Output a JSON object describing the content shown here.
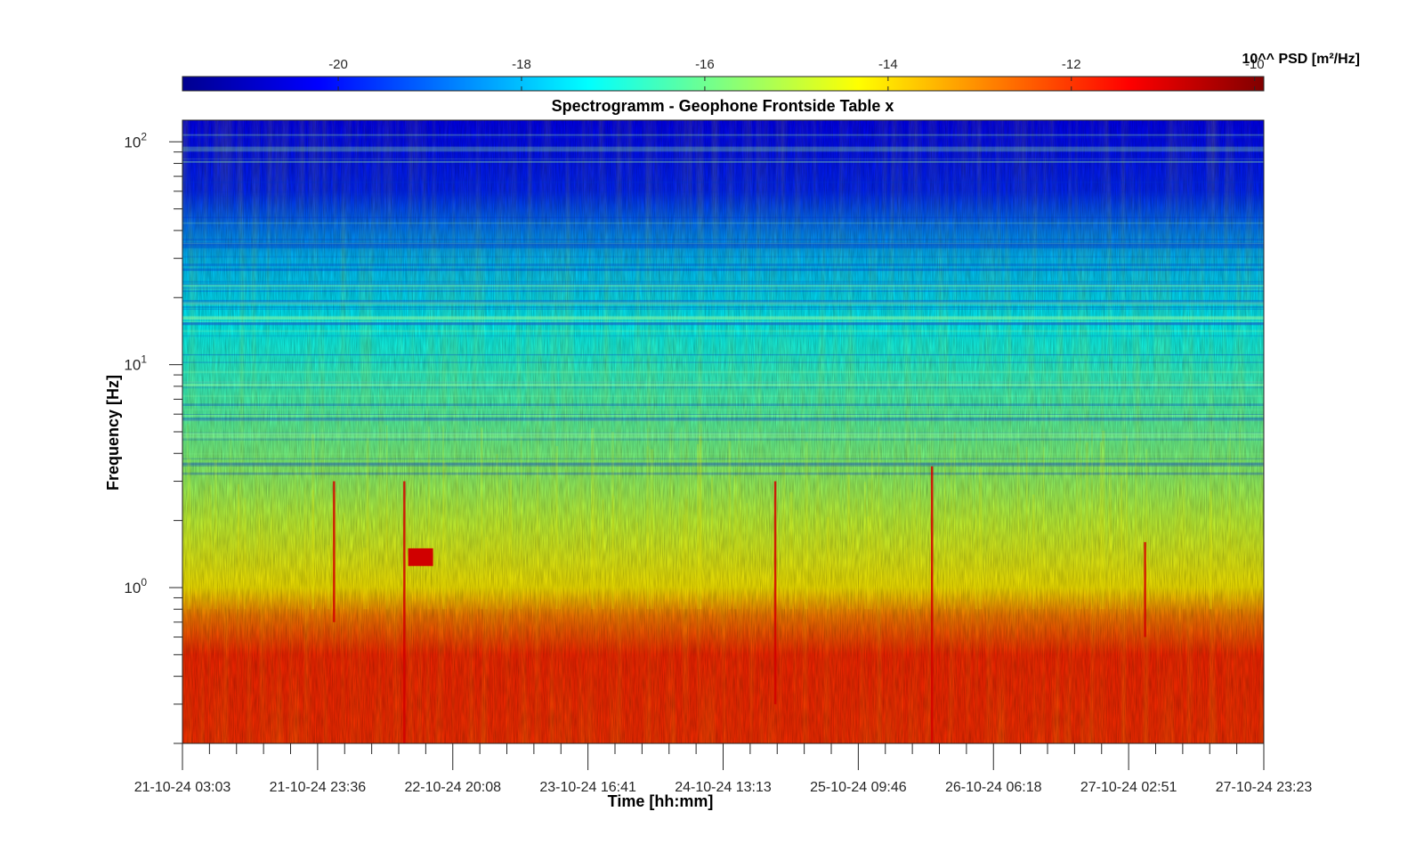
{
  "chart_data": {
    "type": "heatmap",
    "title": "Spectrogramm - Geophone Frontside Table x",
    "xlabel": "Time [hh:mm]",
    "ylabel": "Frequency [Hz]",
    "x_ticks": [
      "21-10-24 03:03",
      "21-10-24 23:36",
      "22-10-24 20:08",
      "23-10-24 16:41",
      "24-10-24 13:13",
      "25-10-24 09:46",
      "26-10-24 06:18",
      "27-10-24 02:51",
      "27-10-24 23:23"
    ],
    "y_scale": "log",
    "ylim": [
      0.2,
      125
    ],
    "y_ticks": [
      {
        "value": 1,
        "base": "10",
        "exp": "0"
      },
      {
        "value": 10,
        "base": "10",
        "exp": "1"
      },
      {
        "value": 100,
        "base": "10",
        "exp": "2"
      }
    ],
    "colorbar": {
      "label": "10^^ PSD [m²/Hz]",
      "range": [
        -21.7,
        -9.9
      ],
      "ticks": [
        "-20",
        "-18",
        "-16",
        "-14",
        "-12",
        "-10"
      ],
      "tick_values": [
        -20,
        -18,
        -16,
        -14,
        -12,
        -10
      ],
      "colormap": "jet",
      "location": "top"
    },
    "intensity_profile": [
      {
        "freq_hz": 125,
        "log_psd": -20.3
      },
      {
        "freq_hz": 60,
        "log_psd": -19.8
      },
      {
        "freq_hz": 30,
        "log_psd": -18.0
      },
      {
        "freq_hz": 15,
        "log_psd": -17.3
      },
      {
        "freq_hz": 8,
        "log_psd": -16.6
      },
      {
        "freq_hz": 4,
        "log_psd": -15.9
      },
      {
        "freq_hz": 2,
        "log_psd": -15.0
      },
      {
        "freq_hz": 1,
        "log_psd": -14.1
      },
      {
        "freq_hz": 0.75,
        "log_psd": -12.8
      },
      {
        "freq_hz": 0.5,
        "log_psd": -11.8
      },
      {
        "freq_hz": 0.2,
        "log_psd": -11.9
      }
    ],
    "features": [
      {
        "kind": "transient",
        "time_fraction": 0.205,
        "freq_range_hz": [
          0.2,
          3.0
        ]
      },
      {
        "kind": "event",
        "time_fraction": 0.212,
        "freq_range_hz": [
          1.25,
          1.5
        ]
      },
      {
        "kind": "transient",
        "time_fraction": 0.14,
        "freq_range_hz": [
          0.7,
          3.0
        ]
      },
      {
        "kind": "transient",
        "time_fraction": 0.548,
        "freq_range_hz": [
          0.3,
          3.0
        ]
      },
      {
        "kind": "transient",
        "time_fraction": 0.693,
        "freq_range_hz": [
          0.2,
          3.5
        ]
      },
      {
        "kind": "transient",
        "time_fraction": 0.89,
        "freq_range_hz": [
          0.6,
          1.6
        ]
      }
    ]
  }
}
